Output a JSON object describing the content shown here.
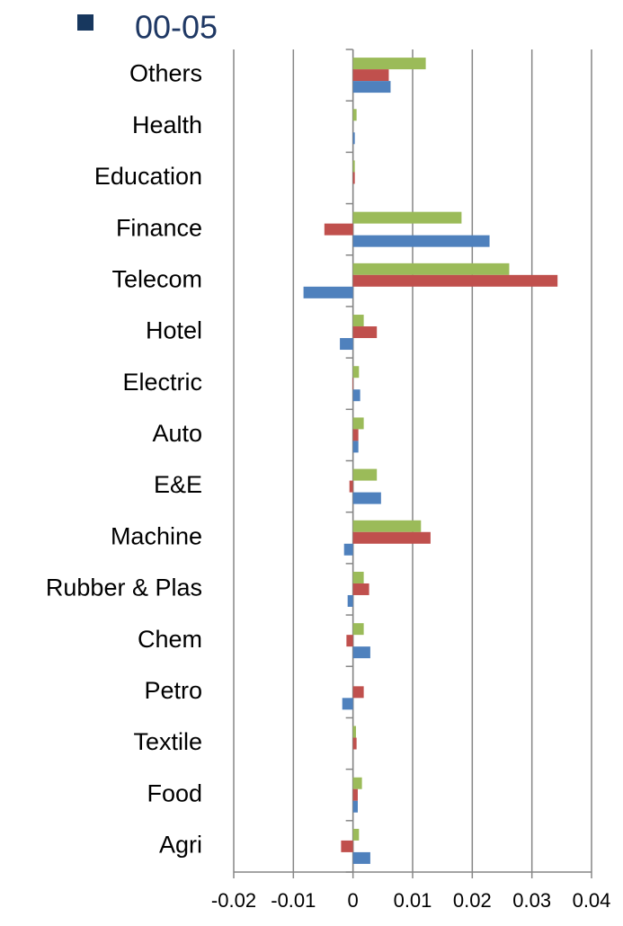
{
  "chart_data": {
    "type": "hbar",
    "title": "00-05",
    "categories": [
      "Others",
      "Health",
      "Education",
      "Finance",
      "Telecom",
      "Hotel",
      "Electric",
      "Auto",
      "E&E",
      "Machine",
      "Rubber & Plas",
      "Chem",
      "Petro",
      "Textile",
      "Food",
      "Agri"
    ],
    "series": [
      {
        "color": "#9bbb59",
        "values": [
          0.0122,
          0.0006,
          0.0003,
          0.0182,
          0.0262,
          0.0018,
          0.001,
          0.0018,
          0.004,
          0.0114,
          0.0018,
          0.0018,
          0,
          0.0005,
          0.0015,
          0.001
        ]
      },
      {
        "color": "#c0504d",
        "values": [
          0.006,
          0,
          0.0003,
          -0.0048,
          0.0343,
          0.004,
          -0.0001,
          0.0009,
          -0.0006,
          0.013,
          0.0027,
          -0.0011,
          0.0018,
          0.0006,
          0.0008,
          -0.002
        ]
      },
      {
        "color": "#4f81bd",
        "values": [
          0.0063,
          0.0003,
          0,
          0.0229,
          -0.0083,
          -0.0022,
          0.0012,
          0.0009,
          0.0047,
          -0.0015,
          -0.0009,
          0.0029,
          -0.0018,
          0,
          0.0008,
          0.0029
        ]
      }
    ],
    "xlim": [
      -0.02,
      0.04
    ],
    "xticks": [
      -0.02,
      -0.01,
      0,
      0.01,
      0.02,
      0.03,
      0.04
    ],
    "grid": true
  }
}
